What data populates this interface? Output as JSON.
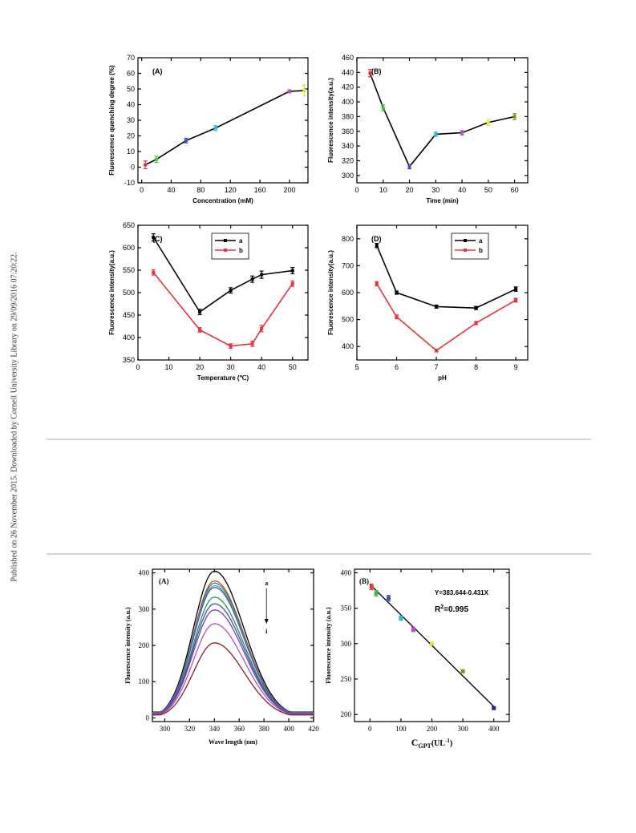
{
  "side_note": "Published on 26 November 2015. Downloaded by Cornell University Library on 29/09/2016 07:20:22.",
  "chart_data": [
    {
      "id": "A1",
      "type": "line",
      "panel_label": "(A)",
      "xlabel": "Concentration (mM)",
      "ylabel": "Fluorescence quenching degree (%)",
      "xlim": [
        -5,
        225
      ],
      "ylim": [
        -10,
        70
      ],
      "xticks": [
        0,
        40,
        80,
        120,
        160,
        200
      ],
      "yticks": [
        -10,
        0,
        10,
        20,
        30,
        40,
        50,
        60,
        70
      ],
      "series": [
        {
          "line": "#000000",
          "x": [
            5,
            20,
            60,
            100,
            200,
            220
          ],
          "y": [
            1.5,
            5,
            17,
            25,
            48.5,
            49
          ],
          "err": [
            2.5,
            2,
            1.5,
            1.5,
            1,
            3.5
          ],
          "colors": [
            "#e8333a",
            "#3fbf3f",
            "#3a52b8",
            "#31b7d6",
            "#b44fbd",
            "#e8e337"
          ]
        }
      ]
    },
    {
      "id": "B1",
      "type": "line",
      "panel_label": "(B)",
      "xlabel": "Time (min)",
      "ylabel": "Fluorescence intensity(a.u.)",
      "xlim": [
        0,
        65
      ],
      "ylim": [
        290,
        460
      ],
      "xticks": [
        0,
        10,
        20,
        30,
        40,
        50,
        60
      ],
      "yticks": [
        300,
        320,
        340,
        360,
        380,
        400,
        420,
        440,
        460
      ],
      "series": [
        {
          "line": "#000000",
          "x": [
            5,
            10,
            20,
            30,
            40,
            50,
            60
          ],
          "y": [
            439,
            392,
            312,
            356,
            358,
            372,
            380
          ],
          "err": [
            5,
            4,
            3,
            3,
            3,
            4,
            4
          ],
          "colors": [
            "#e8333a",
            "#3fbf3f",
            "#3a52b8",
            "#31b7d6",
            "#b44fbd",
            "#e8e337",
            "#8a8a1e"
          ]
        }
      ]
    },
    {
      "id": "C1",
      "type": "line",
      "panel_label": "(C)",
      "xlabel": "Temperature (℃)",
      "ylabel": "Fluorescence intensity(a.u.)",
      "xlim": [
        0,
        55
      ],
      "ylim": [
        350,
        650
      ],
      "xticks": [
        0,
        10,
        20,
        30,
        40,
        50
      ],
      "yticks": [
        350,
        400,
        450,
        500,
        550,
        600,
        650
      ],
      "legend": [
        "a",
        "b"
      ],
      "series": [
        {
          "name": "a",
          "line": "#000000",
          "x": [
            5,
            20,
            30,
            37,
            40,
            50
          ],
          "y": [
            623,
            457,
            505,
            530,
            540,
            549
          ],
          "err": [
            8,
            6,
            6,
            7,
            8,
            7
          ]
        },
        {
          "name": "b",
          "line": "#e8333a",
          "x": [
            5,
            20,
            30,
            37,
            40,
            50
          ],
          "y": [
            545,
            417,
            381,
            386,
            420,
            520
          ],
          "err": [
            6,
            5,
            5,
            6,
            7,
            6
          ]
        }
      ]
    },
    {
      "id": "D1",
      "type": "line",
      "panel_label": "(D)",
      "xlabel": "pH",
      "ylabel": "Fluorescence intensity(a.u.)",
      "xlim": [
        5,
        9.3
      ],
      "ylim": [
        350,
        850
      ],
      "xticks": [
        5,
        6,
        7,
        8,
        9
      ],
      "yticks": [
        400,
        500,
        600,
        700,
        800
      ],
      "legend": [
        "a",
        "b"
      ],
      "series": [
        {
          "name": "a",
          "line": "#000000",
          "x": [
            5.5,
            6,
            7,
            8,
            9
          ],
          "y": [
            775,
            600,
            548,
            543,
            613
          ],
          "err": [
            8,
            6,
            6,
            6,
            8
          ]
        },
        {
          "name": "b",
          "line": "#e8333a",
          "x": [
            5.5,
            6,
            7,
            8,
            9
          ],
          "y": [
            633,
            510,
            385,
            487,
            572
          ],
          "err": [
            8,
            7,
            5,
            6,
            7
          ]
        }
      ]
    },
    {
      "id": "A2",
      "type": "line",
      "panel_label": "(A)",
      "xlabel": "Wave length (nm)",
      "ylabel": "Fluorescence intensity (a.u.)",
      "xlim": [
        290,
        420
      ],
      "ylim": [
        -10,
        410
      ],
      "xticks": [
        300,
        320,
        340,
        360,
        380,
        400,
        420
      ],
      "yticks": [
        0,
        100,
        200,
        300,
        400
      ],
      "annotation_top": "a",
      "annotation_bottom": "i",
      "curves": [
        {
          "color": "#000000",
          "peak": 405
        },
        {
          "color": "#e8333a",
          "peak": 378
        },
        {
          "color": "#1f9a4a",
          "peak": 372
        },
        {
          "color": "#2ab3c9",
          "peak": 365
        },
        {
          "color": "#7b3fb0",
          "peak": 360
        },
        {
          "color": "#1f9a4a",
          "peak": 333
        },
        {
          "color": "#3a52b8",
          "peak": 315
        },
        {
          "color": "#7b3fb0",
          "peak": 298
        },
        {
          "color": "#b44fbd",
          "peak": 260
        },
        {
          "color": "#8a1e1e",
          "peak": 207
        }
      ]
    },
    {
      "id": "B2",
      "type": "scatter",
      "panel_label": "(B)",
      "xlabel_main": "C",
      "xlabel_sub": "GPT",
      "xlabel_unit": "(UL",
      "xlabel_sup": "-1",
      "xlabel_close": ")",
      "ylabel": "Fluorescence intensity (a.u.)",
      "xlim": [
        -50,
        450
      ],
      "ylim": [
        190,
        405
      ],
      "xticks": [
        0,
        100,
        200,
        300,
        400
      ],
      "yticks": [
        200,
        250,
        300,
        350,
        400
      ],
      "equation": "Y=383.644-0.431X",
      "r2_base": "R",
      "r2_sup": "2",
      "r2_value": "=0.995",
      "fit": {
        "intercept": 383.644,
        "slope": -0.431,
        "x_range": [
          0,
          400
        ]
      },
      "points": {
        "x": [
          5,
          20,
          60,
          100,
          140,
          200,
          300,
          400
        ],
        "y": [
          380,
          371,
          364,
          336,
          320,
          300,
          261,
          209
        ],
        "err": [
          4,
          4,
          4,
          3,
          3,
          2,
          2,
          2
        ],
        "colors": [
          "#e8333a",
          "#3fbf3f",
          "#3a52b8",
          "#31b7d6",
          "#b44fbd",
          "#e8e337",
          "#8a8a1e",
          "#2a2a8a"
        ]
      }
    }
  ]
}
